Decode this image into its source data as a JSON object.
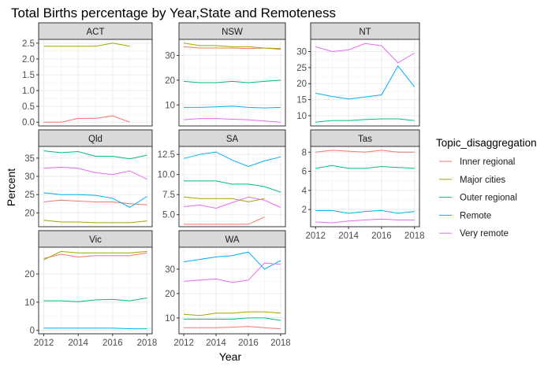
{
  "chart_data": {
    "type": "line",
    "title": "Total Births percentage by Year,State and Remoteness",
    "xlabel": "Year",
    "ylabel": "Percent",
    "x_ticks": [
      2012,
      2014,
      2016,
      2018
    ],
    "grid": true,
    "legend": {
      "title": "Topic_disaggregation",
      "position": "right",
      "entries": [
        "Inner regional",
        "Major cities",
        "Outer regional",
        "Remote",
        "Very remote"
      ]
    },
    "colors": {
      "Inner regional": "#F8766D",
      "Major cities": "#A3A500",
      "Outer regional": "#00BF7D",
      "Remote": "#00B0F6",
      "Very remote": "#E76BF3"
    },
    "panels": [
      {
        "title": "ACT",
        "ylim": [
          -0.12,
          2.62
        ],
        "yticks": [
          0.0,
          0.5,
          1.0,
          1.5,
          2.0,
          2.5
        ],
        "ytick_labels": [
          "0.0",
          "0.5",
          "1.0",
          "1.5",
          "2.0",
          "2.5"
        ],
        "series": [
          {
            "name": "Inner regional",
            "x": [
              2012,
              2013,
              2014,
              2015,
              2016,
              2017
            ],
            "values": [
              0.0,
              0.0,
              0.12,
              0.12,
              0.2,
              0.0
            ]
          },
          {
            "name": "Major cities",
            "x": [
              2012,
              2013,
              2014,
              2015,
              2016,
              2017
            ],
            "values": [
              2.4,
              2.4,
              2.4,
              2.4,
              2.5,
              2.4
            ]
          }
        ]
      },
      {
        "title": "NSW",
        "ylim": [
          1.5,
          36.5
        ],
        "yticks": [
          10,
          20,
          30
        ],
        "ytick_labels": [
          "10",
          "20",
          "30"
        ],
        "series": [
          {
            "name": "Inner regional",
            "x": [
              2012,
              2013,
              2014,
              2015,
              2016,
              2017,
              2018
            ],
            "values": [
              33.5,
              33.0,
              33.0,
              33.0,
              32.8,
              33.0,
              32.5
            ]
          },
          {
            "name": "Major cities",
            "x": [
              2012,
              2013,
              2014,
              2015,
              2016,
              2017,
              2018
            ],
            "values": [
              35.0,
              34.0,
              34.0,
              33.5,
              33.5,
              33.0,
              32.8
            ]
          },
          {
            "name": "Outer regional",
            "x": [
              2012,
              2013,
              2014,
              2015,
              2016,
              2017,
              2018
            ],
            "values": [
              19.5,
              19.0,
              19.0,
              19.5,
              19.0,
              19.5,
              20.0
            ]
          },
          {
            "name": "Remote",
            "x": [
              2012,
              2013,
              2014,
              2015,
              2016,
              2017,
              2018
            ],
            "values": [
              9.0,
              9.0,
              9.2,
              9.5,
              9.0,
              8.8,
              9.0
            ]
          },
          {
            "name": "Very remote",
            "x": [
              2012,
              2013,
              2014,
              2015,
              2016,
              2017,
              2018
            ],
            "values": [
              4.0,
              4.5,
              4.5,
              4.2,
              4.0,
              3.5,
              3.0
            ]
          }
        ]
      },
      {
        "title": "NT",
        "ylim": [
          6.8,
          33.8
        ],
        "yticks": [
          10,
          15,
          20,
          25,
          30
        ],
        "ytick_labels": [
          "10",
          "15",
          "20",
          "25",
          "30"
        ],
        "series": [
          {
            "name": "Outer regional",
            "x": [
              2012,
              2013,
              2014,
              2015,
              2016,
              2017,
              2018
            ],
            "values": [
              8.0,
              8.5,
              8.5,
              8.8,
              9.0,
              9.0,
              8.5
            ]
          },
          {
            "name": "Remote",
            "x": [
              2012,
              2013,
              2014,
              2015,
              2016,
              2017,
              2018
            ],
            "values": [
              17.0,
              16.0,
              15.2,
              15.8,
              16.5,
              25.5,
              19.0
            ]
          },
          {
            "name": "Very remote",
            "x": [
              2012,
              2013,
              2014,
              2015,
              2016,
              2017,
              2018
            ],
            "values": [
              31.5,
              30.0,
              30.5,
              32.5,
              31.8,
              26.5,
              29.5
            ]
          }
        ]
      },
      {
        "title": "Qld",
        "ylim": [
          16.2,
          38.2
        ],
        "yticks": [
          20,
          25,
          30,
          35
        ],
        "ytick_labels": [
          "20",
          "25",
          "30",
          "35"
        ],
        "series": [
          {
            "name": "Inner regional",
            "x": [
              2012,
              2013,
              2014,
              2015,
              2016,
              2017,
              2018
            ],
            "values": [
              23.0,
              23.5,
              23.2,
              23.0,
              23.0,
              22.5,
              22.2
            ]
          },
          {
            "name": "Major cities",
            "x": [
              2012,
              2013,
              2014,
              2015,
              2016,
              2017,
              2018
            ],
            "values": [
              18.0,
              17.5,
              17.5,
              17.3,
              17.3,
              17.3,
              17.8
            ]
          },
          {
            "name": "Outer regional",
            "x": [
              2012,
              2013,
              2014,
              2015,
              2016,
              2017,
              2018
            ],
            "values": [
              37.0,
              36.5,
              36.8,
              35.5,
              35.5,
              34.8,
              35.8
            ]
          },
          {
            "name": "Remote",
            "x": [
              2012,
              2013,
              2014,
              2015,
              2016,
              2017,
              2018
            ],
            "values": [
              25.5,
              25.0,
              25.0,
              24.8,
              24.0,
              21.5,
              24.5
            ]
          },
          {
            "name": "Very remote",
            "x": [
              2012,
              2013,
              2014,
              2015,
              2016,
              2017,
              2018
            ],
            "values": [
              32.2,
              32.5,
              32.2,
              31.0,
              30.5,
              31.5,
              29.2
            ]
          }
        ]
      },
      {
        "title": "SA",
        "ylim": [
          3.5,
          13.5
        ],
        "yticks": [
          5.0,
          7.5,
          10.0,
          12.5
        ],
        "ytick_labels": [
          "5.0",
          "7.5",
          "10.0",
          "12.5"
        ],
        "series": [
          {
            "name": "Inner regional",
            "x": [
              2012,
              2013,
              2014,
              2015,
              2016,
              2017
            ],
            "values": [
              3.8,
              3.8,
              3.8,
              3.8,
              3.8,
              4.7
            ]
          },
          {
            "name": "Major cities",
            "x": [
              2012,
              2013,
              2014,
              2015,
              2016,
              2017
            ],
            "values": [
              7.2,
              7.0,
              7.0,
              7.0,
              6.6,
              7.0
            ]
          },
          {
            "name": "Outer regional",
            "x": [
              2012,
              2013,
              2014,
              2015,
              2016,
              2017,
              2018
            ],
            "values": [
              9.2,
              9.2,
              9.2,
              8.8,
              8.8,
              8.5,
              7.8
            ]
          },
          {
            "name": "Remote",
            "x": [
              2012,
              2013,
              2014,
              2015,
              2016,
              2017,
              2018
            ],
            "values": [
              12.0,
              12.5,
              12.8,
              11.8,
              11.0,
              11.7,
              12.2
            ]
          },
          {
            "name": "Very remote",
            "x": [
              2012,
              2013,
              2014,
              2015,
              2016,
              2017,
              2018
            ],
            "values": [
              6.0,
              6.2,
              5.8,
              6.5,
              7.2,
              6.8,
              5.9
            ]
          }
        ]
      },
      {
        "title": "Tas",
        "ylim": [
          0.2,
          8.6
        ],
        "yticks": [
          2,
          4,
          6,
          8
        ],
        "ytick_labels": [
          "2",
          "4",
          "6",
          "8"
        ],
        "series": [
          {
            "name": "Inner regional",
            "x": [
              2012,
              2013,
              2014,
              2015,
              2016,
              2017,
              2018
            ],
            "values": [
              8.0,
              8.2,
              8.1,
              8.0,
              8.2,
              8.0,
              8.0
            ]
          },
          {
            "name": "Outer regional",
            "x": [
              2012,
              2013,
              2014,
              2015,
              2016,
              2017,
              2018
            ],
            "values": [
              6.3,
              6.6,
              6.3,
              6.3,
              6.5,
              6.4,
              6.3
            ]
          },
          {
            "name": "Remote",
            "x": [
              2012,
              2013,
              2014,
              2015,
              2016,
              2017,
              2018
            ],
            "values": [
              1.9,
              1.9,
              1.6,
              1.8,
              1.9,
              1.6,
              1.8
            ]
          },
          {
            "name": "Very remote",
            "x": [
              2012,
              2013,
              2014,
              2015,
              2016,
              2017,
              2018
            ],
            "values": [
              0.7,
              0.6,
              0.8,
              0.9,
              1.0,
              0.9,
              0.9
            ]
          }
        ]
      },
      {
        "title": "Vic",
        "ylim": [
          -1.2,
          29.5
        ],
        "yticks": [
          0,
          10,
          20
        ],
        "ytick_labels": [
          "0",
          "10",
          "20"
        ],
        "series": [
          {
            "name": "Inner regional",
            "x": [
              2012,
              2013,
              2014,
              2015,
              2016,
              2017,
              2018
            ],
            "values": [
              25.5,
              27.0,
              26.0,
              26.5,
              26.5,
              26.5,
              27.5
            ]
          },
          {
            "name": "Major cities",
            "x": [
              2012,
              2013,
              2014,
              2015,
              2016,
              2017,
              2018
            ],
            "values": [
              25.0,
              28.0,
              27.5,
              27.5,
              27.5,
              27.5,
              28.0
            ]
          },
          {
            "name": "Outer regional",
            "x": [
              2012,
              2013,
              2014,
              2015,
              2016,
              2017,
              2018
            ],
            "values": [
              10.5,
              10.5,
              10.2,
              10.8,
              11.0,
              10.5,
              11.5
            ]
          },
          {
            "name": "Remote",
            "x": [
              2012,
              2013,
              2014,
              2015,
              2016,
              2017,
              2018
            ],
            "values": [
              0.8,
              0.8,
              0.8,
              0.8,
              0.8,
              0.6,
              0.6
            ]
          }
        ]
      },
      {
        "title": "WA",
        "ylim": [
          3.5,
          39.0
        ],
        "yticks": [
          10,
          20,
          30
        ],
        "ytick_labels": [
          "10",
          "20",
          "30"
        ],
        "series": [
          {
            "name": "Inner regional",
            "x": [
              2012,
              2013,
              2014,
              2015,
              2016,
              2017,
              2018
            ],
            "values": [
              6.0,
              6.0,
              6.0,
              6.2,
              6.5,
              6.0,
              5.5
            ]
          },
          {
            "name": "Major cities",
            "x": [
              2012,
              2013,
              2014,
              2015,
              2016,
              2017,
              2018
            ],
            "values": [
              11.5,
              11.0,
              12.0,
              12.0,
              12.5,
              12.5,
              12.0
            ]
          },
          {
            "name": "Outer regional",
            "x": [
              2012,
              2013,
              2014,
              2015,
              2016,
              2017,
              2018
            ],
            "values": [
              9.5,
              9.5,
              9.5,
              9.5,
              10.0,
              10.0,
              9.0
            ]
          },
          {
            "name": "Remote",
            "x": [
              2012,
              2013,
              2014,
              2015,
              2016,
              2017,
              2018
            ],
            "values": [
              33.0,
              34.0,
              35.0,
              35.5,
              37.0,
              30.0,
              33.5
            ]
          },
          {
            "name": "Very remote",
            "x": [
              2012,
              2013,
              2014,
              2015,
              2016,
              2017,
              2018
            ],
            "values": [
              25.0,
              25.5,
              26.0,
              24.5,
              25.5,
              32.5,
              32.0
            ]
          }
        ]
      }
    ]
  }
}
